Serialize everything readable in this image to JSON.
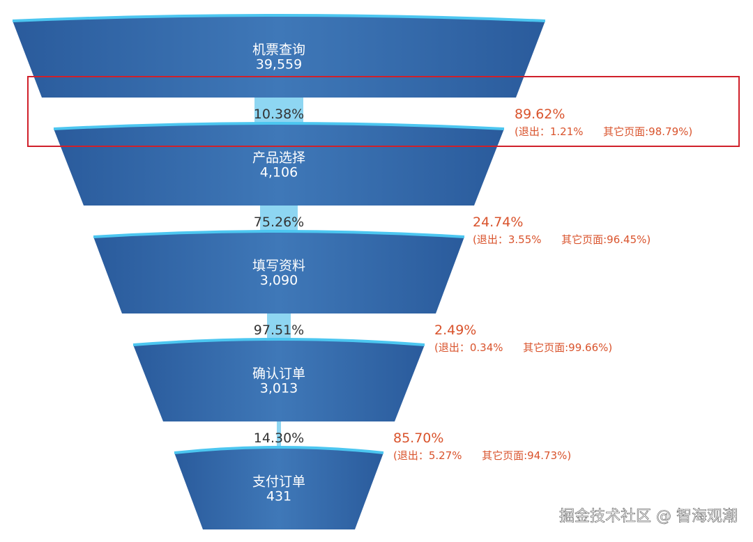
{
  "chart_data": {
    "type": "funnel",
    "categories": [
      "机票查询",
      "产品选择",
      "填写资料",
      "确认订单",
      "支付订单"
    ],
    "values": [
      39559,
      4106,
      3090,
      3013,
      431
    ],
    "value_labels": [
      "39,559",
      "4,106",
      "3,090",
      "3,013",
      "431"
    ],
    "color": "#3568a8",
    "connector_color": "#8ed6f2",
    "conversion_rates": [
      10.38,
      75.26,
      97.51,
      14.3
    ],
    "conversion_labels": [
      "10.38%",
      "75.26%",
      "97.51%",
      "14.30%"
    ],
    "drop_rates": [
      89.62,
      24.74,
      2.49,
      85.7
    ],
    "drop_labels": [
      "89.62%",
      "24.74%",
      "2.49%",
      "85.70%"
    ],
    "drop_details": [
      "(退出：1.21%      其它页面:98.79%)",
      "(退出：3.55%      其它页面:96.45%)",
      "(退出：0.34%      其它页面:99.66%)",
      "(退出：5.27%      其它页面:94.73%)"
    ],
    "drop_color": "#d9532c",
    "highlight_step": 0,
    "watermark": "掘金技术社区 @ 智海观潮"
  }
}
